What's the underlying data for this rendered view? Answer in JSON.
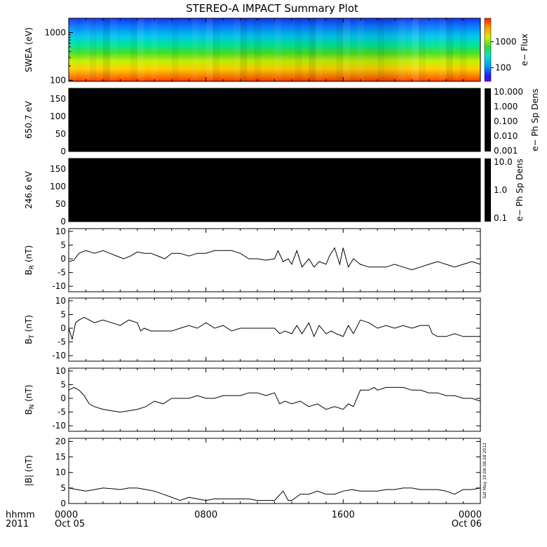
{
  "title": "STEREO-A IMPACT Summary Plot",
  "stamp": "Sat May 19 08:38:28 2012",
  "footer": {
    "hhmm": "hhmm",
    "year": "2011"
  },
  "xaxis": {
    "ticks": [
      {
        "time": "0000",
        "date": "Oct 05",
        "hour": 0
      },
      {
        "time": "0800",
        "date": "",
        "hour": 8
      },
      {
        "time": "1600",
        "date": "",
        "hour": 16
      },
      {
        "time": "0000",
        "date": "Oct 06",
        "hour": 24
      }
    ],
    "range_hours": [
      0,
      24
    ]
  },
  "chart_data": [
    {
      "type": "heatmap",
      "panel": "swea",
      "ylabel": "SWEA (eV)",
      "yscale": "log",
      "ylim": [
        95,
        2000
      ],
      "yticks": [
        100,
        1000
      ],
      "ytick_labels": [
        "100",
        "1000"
      ],
      "colorbar": {
        "label": "e− Flux",
        "scale": "log",
        "ticks": [
          100,
          1000
        ],
        "tick_labels": [
          "100",
          "1000"
        ],
        "range": [
          30,
          8000
        ]
      }
    },
    {
      "type": "heatmap",
      "panel": "pad650",
      "ylabel": "650.7 eV",
      "ylim": [
        0,
        180
      ],
      "yticks": [
        0,
        50,
        100,
        150
      ],
      "ytick_labels": [
        "0",
        "50",
        "100",
        "150"
      ],
      "colorbar": {
        "label": "e− Ph Sp Dens",
        "scale": "log",
        "tick_labels": [
          "10.000",
          "1.000",
          "0.100",
          "0.010",
          "0.001"
        ]
      }
    },
    {
      "type": "heatmap",
      "panel": "pad246",
      "ylabel": "246.6 eV",
      "ylim": [
        0,
        180
      ],
      "yticks": [
        0,
        50,
        100,
        150
      ],
      "ytick_labels": [
        "0",
        "50",
        "100",
        "150"
      ],
      "colorbar": {
        "label": "e− Ph Sp Dens",
        "scale": "log",
        "tick_labels": [
          "10.0",
          "1.0",
          "0.1"
        ]
      }
    },
    {
      "type": "line",
      "panel": "br",
      "ylabel_main": "B",
      "ylabel_sub": "R",
      "ylabel_unit": " (nT)",
      "ylim": [
        -12,
        11
      ],
      "yticks": [
        -10,
        -5,
        0,
        5,
        10
      ],
      "ytick_labels": [
        "-10",
        "-5",
        "0",
        "5",
        "10"
      ],
      "x": [
        0,
        0.3,
        0.6,
        1.0,
        1.5,
        2.0,
        2.4,
        2.8,
        3.2,
        3.6,
        4.0,
        4.4,
        4.8,
        5.2,
        5.6,
        6.0,
        6.5,
        7.0,
        7.5,
        8.0,
        8.5,
        9.0,
        9.5,
        10.0,
        10.5,
        11.0,
        11.5,
        12.0,
        12.2,
        12.5,
        12.8,
        13.0,
        13.3,
        13.6,
        14.0,
        14.3,
        14.6,
        15.0,
        15.2,
        15.5,
        15.8,
        16.0,
        16.3,
        16.6,
        17.0,
        17.5,
        18.0,
        18.5,
        19.0,
        19.5,
        20.0,
        20.5,
        21.0,
        21.5,
        22.0,
        22.5,
        23.0,
        23.5,
        24.0
      ],
      "y": [
        -1,
        -0.5,
        2,
        3,
        2,
        3,
        2,
        1,
        0,
        1,
        2.5,
        2,
        2,
        1,
        0,
        2,
        2,
        1,
        2,
        2,
        3,
        3,
        3,
        2,
        0,
        0,
        -0.5,
        0,
        3,
        -1,
        0,
        -2,
        3,
        -3,
        0,
        -3,
        -1,
        -2,
        1,
        4,
        -2,
        4,
        -3,
        0,
        -2,
        -3,
        -3,
        -3,
        -2,
        -3,
        -4,
        -3,
        -2,
        -1,
        -2,
        -3,
        -2,
        -1,
        -2
      ]
    },
    {
      "type": "line",
      "panel": "bt",
      "ylabel_main": "B",
      "ylabel_sub": "T",
      "ylabel_unit": " (nT)",
      "ylim": [
        -12,
        11
      ],
      "yticks": [
        -10,
        -5,
        0,
        5,
        10
      ],
      "ytick_labels": [
        "-10",
        "-5",
        "0",
        "5",
        "10"
      ],
      "x": [
        0,
        0.2,
        0.4,
        0.6,
        0.9,
        1.2,
        1.5,
        2.0,
        2.5,
        3.0,
        3.5,
        4.0,
        4.2,
        4.4,
        4.8,
        5.2,
        5.6,
        6.0,
        6.5,
        7.0,
        7.5,
        8.0,
        8.5,
        9.0,
        9.5,
        10.0,
        10.5,
        11.0,
        11.5,
        12.0,
        12.3,
        12.6,
        13.0,
        13.3,
        13.6,
        14.0,
        14.3,
        14.6,
        15.0,
        15.3,
        15.6,
        16.0,
        16.3,
        16.6,
        17.0,
        17.5,
        18.0,
        18.5,
        19.0,
        19.5,
        20.0,
        20.5,
        21.0,
        21.2,
        21.5,
        22.0,
        22.5,
        23.0,
        23.5,
        24.0
      ],
      "y": [
        0,
        -4,
        2,
        3,
        4,
        3,
        2,
        3,
        2,
        1,
        3,
        2,
        -1,
        0,
        -1,
        -1,
        -1,
        -1,
        0,
        1,
        0,
        2,
        0,
        1,
        -1,
        0,
        0,
        0,
        0,
        0,
        -2,
        -1,
        -2,
        1,
        -2,
        2,
        -3,
        1,
        -2,
        -1,
        -2,
        -3,
        1,
        -2,
        3,
        2,
        0,
        1,
        0,
        1,
        0,
        1,
        1,
        -2,
        -3,
        -3,
        -2,
        -3,
        -3,
        -3
      ]
    },
    {
      "type": "line",
      "panel": "bn",
      "ylabel_main": "B",
      "ylabel_sub": "N",
      "ylabel_unit": " (nT)",
      "ylim": [
        -12,
        11
      ],
      "yticks": [
        -10,
        -5,
        0,
        5,
        10
      ],
      "ytick_labels": [
        "-10",
        "-5",
        "0",
        "5",
        "10"
      ],
      "x": [
        0,
        0.3,
        0.6,
        0.9,
        1.2,
        1.5,
        2.0,
        2.5,
        3.0,
        3.5,
        4.0,
        4.5,
        5.0,
        5.5,
        6.0,
        6.5,
        7.0,
        7.5,
        8.0,
        8.5,
        9.0,
        9.5,
        10.0,
        10.5,
        11.0,
        11.5,
        12.0,
        12.3,
        12.6,
        13.0,
        13.5,
        14.0,
        14.5,
        15.0,
        15.5,
        16.0,
        16.3,
        16.6,
        17.0,
        17.3,
        17.5,
        17.8,
        18.0,
        18.5,
        19.0,
        19.5,
        20.0,
        20.5,
        21.0,
        21.5,
        22.0,
        22.5,
        23.0,
        23.5,
        24.0
      ],
      "y": [
        3,
        4,
        3,
        1,
        -2,
        -3,
        -4,
        -4.5,
        -5,
        -4.5,
        -4,
        -3,
        -1,
        -2,
        0,
        0,
        0,
        1,
        0,
        0,
        1,
        1,
        1,
        2,
        2,
        1,
        2,
        -2,
        -1,
        -2,
        -1,
        -3,
        -2,
        -4,
        -3,
        -4,
        -2,
        -3,
        3,
        3,
        3,
        4,
        3,
        4,
        4,
        4,
        3,
        3,
        2,
        2,
        1,
        1,
        0,
        0,
        -1
      ]
    },
    {
      "type": "line",
      "panel": "bmag",
      "ylabel_main": "|B| (nT)",
      "ylim": [
        0,
        21
      ],
      "yticks": [
        0,
        5,
        10,
        15,
        20
      ],
      "ytick_labels": [
        "0",
        "5",
        "10",
        "15",
        "20"
      ],
      "x": [
        0,
        0.5,
        1.0,
        1.5,
        2.0,
        2.5,
        3.0,
        3.5,
        4.0,
        4.5,
        5.0,
        5.5,
        6.0,
        6.5,
        7.0,
        7.5,
        8.0,
        8.5,
        9.0,
        9.5,
        10.0,
        10.5,
        11.0,
        11.5,
        12.0,
        12.5,
        12.8,
        13.0,
        13.5,
        14.0,
        14.5,
        15.0,
        15.5,
        16.0,
        16.5,
        17.0,
        17.5,
        18.0,
        18.5,
        19.0,
        19.5,
        20.0,
        20.5,
        21.0,
        21.5,
        22.0,
        22.5,
        23.0,
        23.5,
        24.0
      ],
      "y": [
        5,
        4.5,
        4,
        4.5,
        5,
        4.8,
        4.5,
        5,
        5,
        4.5,
        4,
        3,
        2,
        1,
        2,
        1.5,
        1,
        1.5,
        1.5,
        1.5,
        1.5,
        1.5,
        1,
        1,
        1,
        4,
        1,
        1,
        3,
        3,
        4,
        3,
        3,
        4,
        4.5,
        4,
        4,
        4,
        4.5,
        4.5,
        5,
        5,
        4.5,
        4.5,
        4.5,
        4,
        3,
        4.5,
        4.5,
        5
      ]
    }
  ]
}
